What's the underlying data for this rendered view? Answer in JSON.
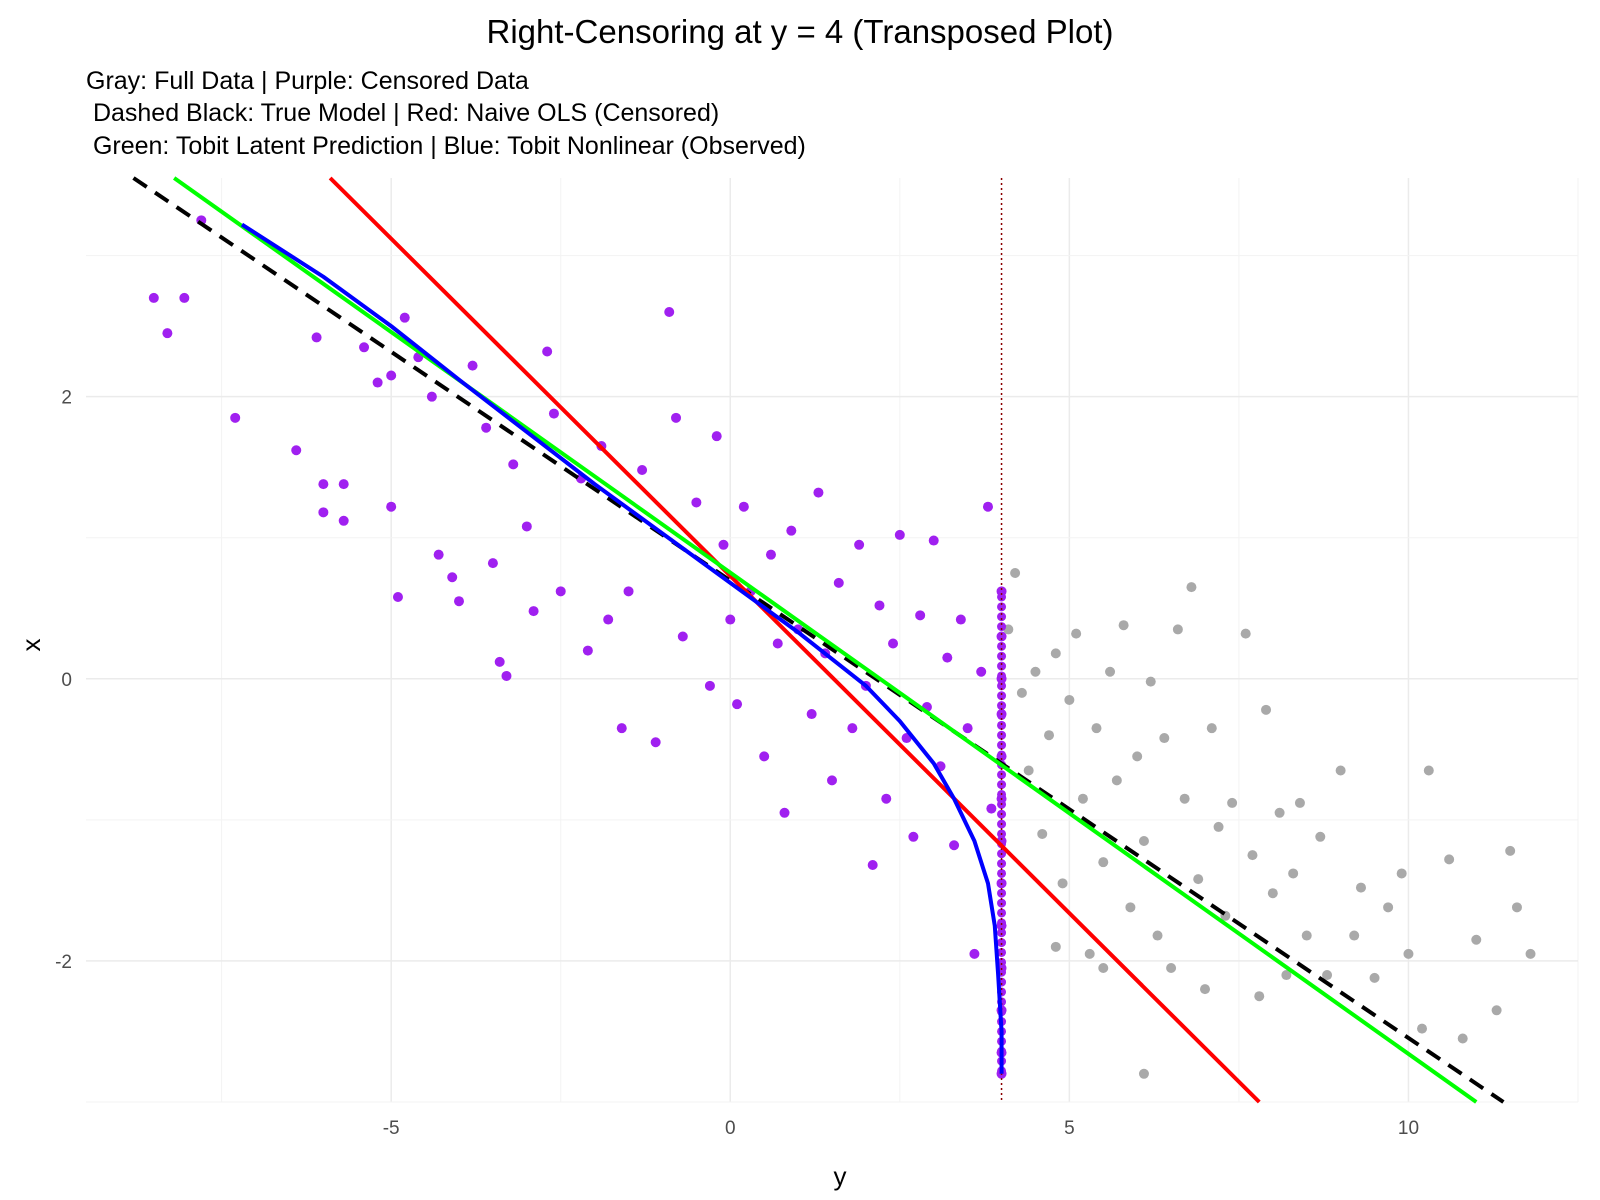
{
  "chart_data": {
    "type": "scatter",
    "title": "Right-Censoring at y = 4 (Transposed Plot)",
    "subtitle_lines": [
      "Gray: Full Data | Purple: Censored Data",
      " Dashed Black: True Model | Red: Naive OLS (Censored)",
      " Green: Tobit Latent Prediction | Blue: Tobit Nonlinear (Observed)"
    ],
    "xlabel": "y",
    "ylabel": "x",
    "xlim": [
      -9.5,
      12.5
    ],
    "ylim": [
      -3.0,
      3.55
    ],
    "x_ticks": [
      -5,
      0,
      5,
      10
    ],
    "y_ticks": [
      -2,
      0,
      2
    ],
    "grid": true,
    "censor_threshold": 4,
    "colors": {
      "full": "#A9A9A9",
      "censored": "#A020F0",
      "true_model": "#000000",
      "naive_ols": "#FF0000",
      "tobit_latent": "#00FF00",
      "tobit_nonlinear": "#0000FF",
      "threshold": "#8B0000"
    },
    "series": [
      {
        "role": "true_model",
        "style": "dashed",
        "x": [
          -8.8,
          11.4
        ],
        "y": [
          3.55,
          -3.0
        ]
      },
      {
        "role": "naive_ols",
        "style": "solid",
        "x": [
          -5.9,
          7.8
        ],
        "y": [
          3.55,
          -3.0
        ]
      },
      {
        "role": "tobit_latent",
        "style": "solid",
        "x": [
          -8.2,
          11.0
        ],
        "y": [
          3.55,
          -3.0
        ]
      },
      {
        "role": "tobit_nonlinear",
        "style": "solid",
        "x": [
          -7.2,
          -6.0,
          -5.0,
          -4.0,
          -3.0,
          -2.0,
          -1.0,
          0.0,
          1.0,
          2.0,
          2.5,
          3.0,
          3.3,
          3.6,
          3.8,
          3.9,
          3.95,
          4.0,
          4.0
        ],
        "y": [
          3.22,
          2.85,
          2.5,
          2.12,
          1.75,
          1.38,
          1.03,
          0.68,
          0.33,
          -0.05,
          -0.3,
          -0.6,
          -0.85,
          -1.15,
          -1.45,
          -1.75,
          -2.1,
          -2.5,
          -2.8
        ]
      }
    ],
    "points_full": [
      [
        -8.5,
        2.7
      ],
      [
        -8.3,
        2.45
      ],
      [
        -8.05,
        2.7
      ],
      [
        -7.8,
        3.25
      ],
      [
        -7.3,
        1.85
      ],
      [
        -6.4,
        1.62
      ],
      [
        -6.1,
        2.42
      ],
      [
        -6.0,
        1.38
      ],
      [
        -6.0,
        1.18
      ],
      [
        -5.7,
        1.38
      ],
      [
        -5.7,
        1.12
      ],
      [
        -5.4,
        2.35
      ],
      [
        -5.2,
        2.1
      ],
      [
        -5.0,
        2.15
      ],
      [
        -5.0,
        1.22
      ],
      [
        -4.9,
        0.58
      ],
      [
        -4.8,
        2.56
      ],
      [
        -4.6,
        2.28
      ],
      [
        -4.4,
        2.0
      ],
      [
        -4.3,
        0.88
      ],
      [
        -4.1,
        0.72
      ],
      [
        -4.0,
        0.55
      ],
      [
        -3.8,
        2.22
      ],
      [
        -3.6,
        1.78
      ],
      [
        -3.5,
        0.82
      ],
      [
        -3.4,
        0.12
      ],
      [
        -3.3,
        0.02
      ],
      [
        -3.2,
        1.52
      ],
      [
        -3.0,
        1.08
      ],
      [
        -2.9,
        0.48
      ],
      [
        -2.7,
        2.32
      ],
      [
        -2.6,
        1.88
      ],
      [
        -2.5,
        0.62
      ],
      [
        -2.2,
        1.42
      ],
      [
        -2.1,
        0.2
      ],
      [
        -1.9,
        1.65
      ],
      [
        -1.8,
        0.42
      ],
      [
        -1.6,
        -0.35
      ],
      [
        -1.5,
        0.62
      ],
      [
        -1.3,
        1.48
      ],
      [
        -1.1,
        -0.45
      ],
      [
        -0.9,
        2.6
      ],
      [
        -0.8,
        1.85
      ],
      [
        -0.7,
        0.3
      ],
      [
        -0.5,
        1.25
      ],
      [
        -0.3,
        -0.05
      ],
      [
        -0.2,
        1.72
      ],
      [
        -0.1,
        0.95
      ],
      [
        0.0,
        0.42
      ],
      [
        0.1,
        -0.18
      ],
      [
        0.2,
        1.22
      ],
      [
        0.3,
        0.62
      ],
      [
        0.5,
        -0.55
      ],
      [
        0.6,
        0.88
      ],
      [
        0.7,
        0.25
      ],
      [
        0.8,
        -0.95
      ],
      [
        0.9,
        1.05
      ],
      [
        1.0,
        0.35
      ],
      [
        1.2,
        -0.25
      ],
      [
        1.3,
        1.32
      ],
      [
        1.4,
        0.18
      ],
      [
        1.5,
        -0.72
      ],
      [
        1.6,
        0.68
      ],
      [
        1.8,
        -0.35
      ],
      [
        1.9,
        0.95
      ],
      [
        2.0,
        -0.05
      ],
      [
        2.1,
        -1.32
      ],
      [
        2.2,
        0.52
      ],
      [
        2.3,
        -0.85
      ],
      [
        2.4,
        0.25
      ],
      [
        2.5,
        1.02
      ],
      [
        2.6,
        -0.42
      ],
      [
        2.7,
        -1.12
      ],
      [
        2.8,
        0.45
      ],
      [
        2.9,
        -0.2
      ],
      [
        3.0,
        0.98
      ],
      [
        3.1,
        -0.62
      ],
      [
        3.2,
        0.15
      ],
      [
        3.3,
        -1.18
      ],
      [
        3.4,
        0.42
      ],
      [
        3.5,
        -0.35
      ],
      [
        3.6,
        -1.95
      ],
      [
        3.7,
        0.05
      ],
      [
        3.8,
        1.22
      ],
      [
        3.85,
        -0.92
      ],
      [
        4.0,
        0.62
      ],
      [
        4.0,
        0.3
      ],
      [
        4.0,
        0.0
      ],
      [
        4.0,
        -0.25
      ],
      [
        4.0,
        -0.55
      ],
      [
        4.0,
        -0.85
      ],
      [
        4.0,
        -1.15
      ],
      [
        4.0,
        -1.45
      ],
      [
        4.0,
        -1.75
      ],
      [
        4.0,
        -2.05
      ],
      [
        4.0,
        -2.35
      ],
      [
        4.0,
        -2.65
      ],
      [
        4.1,
        0.35
      ],
      [
        4.2,
        0.75
      ],
      [
        4.3,
        -0.1
      ],
      [
        4.4,
        -0.65
      ],
      [
        4.5,
        0.05
      ],
      [
        4.6,
        -1.1
      ],
      [
        4.7,
        -0.4
      ],
      [
        4.8,
        0.18
      ],
      [
        4.9,
        -1.45
      ],
      [
        5.0,
        -0.15
      ],
      [
        5.1,
        0.32
      ],
      [
        5.2,
        -0.85
      ],
      [
        5.3,
        -1.95
      ],
      [
        5.4,
        -0.35
      ],
      [
        5.5,
        -1.3
      ],
      [
        5.6,
        0.05
      ],
      [
        5.7,
        -0.72
      ],
      [
        5.8,
        0.38
      ],
      [
        5.9,
        -1.62
      ],
      [
        6.0,
        -0.55
      ],
      [
        6.1,
        -1.15
      ],
      [
        6.2,
        -0.02
      ],
      [
        6.3,
        -1.82
      ],
      [
        6.4,
        -0.42
      ],
      [
        6.5,
        -2.05
      ],
      [
        6.6,
        0.35
      ],
      [
        6.7,
        -0.85
      ],
      [
        6.8,
        0.65
      ],
      [
        6.9,
        -1.42
      ],
      [
        7.0,
        -2.2
      ],
      [
        7.1,
        -0.35
      ],
      [
        7.2,
        -1.05
      ],
      [
        7.3,
        -1.68
      ],
      [
        7.4,
        -0.88
      ],
      [
        7.6,
        0.32
      ],
      [
        7.7,
        -1.25
      ],
      [
        7.8,
        -2.25
      ],
      [
        7.9,
        -0.22
      ],
      [
        8.0,
        -1.52
      ],
      [
        8.1,
        -0.95
      ],
      [
        8.2,
        -2.1
      ],
      [
        8.3,
        -1.38
      ],
      [
        8.4,
        -0.88
      ],
      [
        8.5,
        -1.82
      ],
      [
        8.7,
        -1.12
      ],
      [
        8.8,
        -2.1
      ],
      [
        9.0,
        -0.65
      ],
      [
        9.2,
        -1.82
      ],
      [
        9.3,
        -1.48
      ],
      [
        9.5,
        -2.12
      ],
      [
        9.7,
        -1.62
      ],
      [
        9.9,
        -1.38
      ],
      [
        10.0,
        -1.95
      ],
      [
        10.2,
        -2.48
      ],
      [
        10.3,
        -0.65
      ],
      [
        10.6,
        -1.28
      ],
      [
        10.8,
        -2.55
      ],
      [
        11.0,
        -1.85
      ],
      [
        11.3,
        -2.35
      ],
      [
        11.5,
        -1.22
      ],
      [
        11.6,
        -1.62
      ],
      [
        11.8,
        -1.95
      ],
      [
        6.1,
        -2.8
      ],
      [
        5.5,
        -2.05
      ],
      [
        4.8,
        -1.9
      ]
    ],
    "points_censored": [
      [
        -8.5,
        2.7
      ],
      [
        -8.3,
        2.45
      ],
      [
        -8.05,
        2.7
      ],
      [
        -7.8,
        3.25
      ],
      [
        -7.3,
        1.85
      ],
      [
        -6.4,
        1.62
      ],
      [
        -6.1,
        2.42
      ],
      [
        -6.0,
        1.38
      ],
      [
        -6.0,
        1.18
      ],
      [
        -5.7,
        1.38
      ],
      [
        -5.7,
        1.12
      ],
      [
        -5.4,
        2.35
      ],
      [
        -5.2,
        2.1
      ],
      [
        -5.0,
        2.15
      ],
      [
        -5.0,
        1.22
      ],
      [
        -4.9,
        0.58
      ],
      [
        -4.8,
        2.56
      ],
      [
        -4.6,
        2.28
      ],
      [
        -4.4,
        2.0
      ],
      [
        -4.3,
        0.88
      ],
      [
        -4.1,
        0.72
      ],
      [
        -4.0,
        0.55
      ],
      [
        -3.8,
        2.22
      ],
      [
        -3.6,
        1.78
      ],
      [
        -3.5,
        0.82
      ],
      [
        -3.4,
        0.12
      ],
      [
        -3.3,
        0.02
      ],
      [
        -3.2,
        1.52
      ],
      [
        -3.0,
        1.08
      ],
      [
        -2.9,
        0.48
      ],
      [
        -2.7,
        2.32
      ],
      [
        -2.6,
        1.88
      ],
      [
        -2.5,
        0.62
      ],
      [
        -2.2,
        1.42
      ],
      [
        -2.1,
        0.2
      ],
      [
        -1.9,
        1.65
      ],
      [
        -1.8,
        0.42
      ],
      [
        -1.6,
        -0.35
      ],
      [
        -1.5,
        0.62
      ],
      [
        -1.3,
        1.48
      ],
      [
        -1.1,
        -0.45
      ],
      [
        -0.9,
        2.6
      ],
      [
        -0.8,
        1.85
      ],
      [
        -0.7,
        0.3
      ],
      [
        -0.5,
        1.25
      ],
      [
        -0.3,
        -0.05
      ],
      [
        -0.2,
        1.72
      ],
      [
        -0.1,
        0.95
      ],
      [
        0.0,
        0.42
      ],
      [
        0.1,
        -0.18
      ],
      [
        0.2,
        1.22
      ],
      [
        0.3,
        0.62
      ],
      [
        0.5,
        -0.55
      ],
      [
        0.6,
        0.88
      ],
      [
        0.7,
        0.25
      ],
      [
        0.8,
        -0.95
      ],
      [
        0.9,
        1.05
      ],
      [
        1.0,
        0.35
      ],
      [
        1.2,
        -0.25
      ],
      [
        1.3,
        1.32
      ],
      [
        1.4,
        0.18
      ],
      [
        1.5,
        -0.72
      ],
      [
        1.6,
        0.68
      ],
      [
        1.8,
        -0.35
      ],
      [
        1.9,
        0.95
      ],
      [
        2.0,
        -0.05
      ],
      [
        2.1,
        -1.32
      ],
      [
        2.2,
        0.52
      ],
      [
        2.3,
        -0.85
      ],
      [
        2.4,
        0.25
      ],
      [
        2.5,
        1.02
      ],
      [
        2.6,
        -0.42
      ],
      [
        2.7,
        -1.12
      ],
      [
        2.8,
        0.45
      ],
      [
        2.9,
        -0.2
      ],
      [
        3.0,
        0.98
      ],
      [
        3.1,
        -0.62
      ],
      [
        3.2,
        0.15
      ],
      [
        3.3,
        -1.18
      ],
      [
        3.4,
        0.42
      ],
      [
        3.5,
        -0.35
      ],
      [
        3.6,
        -1.95
      ],
      [
        3.7,
        0.05
      ],
      [
        3.8,
        1.22
      ],
      [
        3.85,
        -0.92
      ],
      [
        4.0,
        0.62
      ],
      [
        4.0,
        0.3
      ],
      [
        4.0,
        0.0
      ],
      [
        4.0,
        -0.25
      ],
      [
        4.0,
        -0.55
      ],
      [
        4.0,
        -0.85
      ],
      [
        4.0,
        -1.15
      ],
      [
        4.0,
        -1.45
      ],
      [
        4.0,
        -1.75
      ],
      [
        4.0,
        -2.05
      ],
      [
        4.0,
        -2.35
      ],
      [
        4.0,
        -2.65
      ],
      [
        4.0,
        -2.8
      ]
    ]
  }
}
